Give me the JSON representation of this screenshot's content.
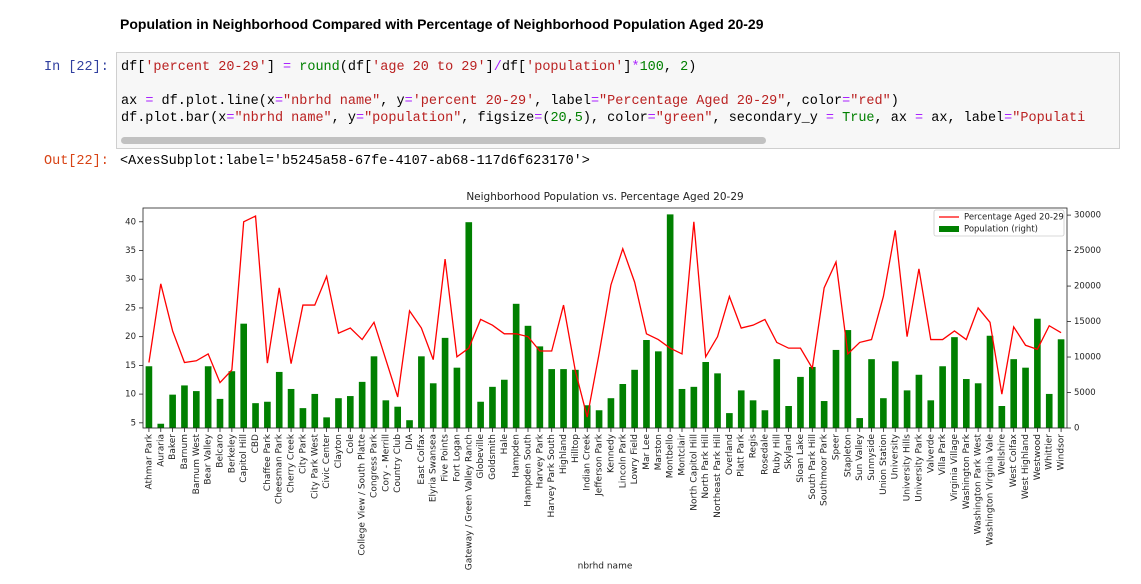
{
  "header": {
    "title": "Population in Neighborhood Compared with Percentage of Neighborhood Population Aged 20-29"
  },
  "input_prompt": "In [22]:",
  "output_prompt": "Out[22]:",
  "code": {
    "lines": [
      [
        {
          "text": "df[",
          "color": "#000"
        },
        {
          "text": "'percent 20-29'",
          "color": "#ba2121"
        },
        {
          "text": "] ",
          "color": "#000"
        },
        {
          "text": "= ",
          "color": "#aa22ff"
        },
        {
          "text": "round",
          "color": "#008000"
        },
        {
          "text": "(df[",
          "color": "#000"
        },
        {
          "text": "'age 20 to 29'",
          "color": "#ba2121"
        },
        {
          "text": "]",
          "color": "#000"
        },
        {
          "text": "/",
          "color": "#aa22ff"
        },
        {
          "text": "df[",
          "color": "#000"
        },
        {
          "text": "'population'",
          "color": "#ba2121"
        },
        {
          "text": "]",
          "color": "#000"
        },
        {
          "text": "*",
          "color": "#aa22ff"
        },
        {
          "text": "100",
          "color": "#008000"
        },
        {
          "text": ", ",
          "color": "#000"
        },
        {
          "text": "2",
          "color": "#008000"
        },
        {
          "text": ")",
          "color": "#000"
        }
      ],
      [],
      [
        {
          "text": "ax ",
          "color": "#000"
        },
        {
          "text": "= ",
          "color": "#aa22ff"
        },
        {
          "text": "df.plot.line(x",
          "color": "#000"
        },
        {
          "text": "=",
          "color": "#aa22ff"
        },
        {
          "text": "\"nbrhd name\"",
          "color": "#ba2121"
        },
        {
          "text": ", y",
          "color": "#000"
        },
        {
          "text": "=",
          "color": "#aa22ff"
        },
        {
          "text": "'percent 20-29'",
          "color": "#ba2121"
        },
        {
          "text": ", label",
          "color": "#000"
        },
        {
          "text": "=",
          "color": "#aa22ff"
        },
        {
          "text": "\"Percentage Aged 20-29\"",
          "color": "#ba2121"
        },
        {
          "text": ", color",
          "color": "#000"
        },
        {
          "text": "=",
          "color": "#aa22ff"
        },
        {
          "text": "\"red\"",
          "color": "#ba2121"
        },
        {
          "text": ")",
          "color": "#000"
        }
      ],
      [
        {
          "text": "df.plot.bar(x",
          "color": "#000"
        },
        {
          "text": "=",
          "color": "#aa22ff"
        },
        {
          "text": "\"nbrhd name\"",
          "color": "#ba2121"
        },
        {
          "text": ", y",
          "color": "#000"
        },
        {
          "text": "=",
          "color": "#aa22ff"
        },
        {
          "text": "\"population\"",
          "color": "#ba2121"
        },
        {
          "text": ", figsize",
          "color": "#000"
        },
        {
          "text": "=",
          "color": "#aa22ff"
        },
        {
          "text": "(",
          "color": "#000"
        },
        {
          "text": "20",
          "color": "#008000"
        },
        {
          "text": ",",
          "color": "#000"
        },
        {
          "text": "5",
          "color": "#008000"
        },
        {
          "text": "), color",
          "color": "#000"
        },
        {
          "text": "=",
          "color": "#aa22ff"
        },
        {
          "text": "\"green\"",
          "color": "#ba2121"
        },
        {
          "text": ", secondary_y ",
          "color": "#000"
        },
        {
          "text": "= ",
          "color": "#aa22ff"
        },
        {
          "text": "True",
          "color": "#008000"
        },
        {
          "text": ", ax ",
          "color": "#000"
        },
        {
          "text": "= ",
          "color": "#aa22ff"
        },
        {
          "text": "ax, label",
          "color": "#000"
        },
        {
          "text": "=",
          "color": "#aa22ff"
        },
        {
          "text": "\"Populati",
          "color": "#ba2121"
        }
      ]
    ]
  },
  "output": "<AxesSubplot:label='b5245a58-67fe-4107-ab68-117d6f623170'>",
  "chart_data": {
    "type": "combo",
    "title": "Neighborhood Population vs. Percentage Aged 20-29",
    "x_label": "nbrhd name",
    "legend": "upper right",
    "categories": [
      "Athmar Park",
      "Auraria",
      "Baker",
      "Barnum",
      "Barnum West",
      "Bear Valley",
      "Belcaro",
      "Berkeley",
      "Capitol Hill",
      "CBD",
      "Chaffee Park",
      "Cheesman Park",
      "Cherry Creek",
      "City Park",
      "City Park West",
      "Civic Center",
      "Clayton",
      "Cole",
      "College View / South Platte",
      "Congress Park",
      "Cory - Merrill",
      "Country Club",
      "DIA",
      "East Colfax",
      "Elyria Swansea",
      "Five Points",
      "Fort Logan",
      "Gateway / Green Valley Ranch",
      "Globeville",
      "Goldsmith",
      "Hale",
      "Hampden",
      "Hampden South",
      "Harvey Park",
      "Harvey Park South",
      "Highland",
      "Hilltop",
      "Indian Creek",
      "Jefferson Park",
      "Kennedy",
      "Lincoln Park",
      "Lowry Field",
      "Mar Lee",
      "Marston",
      "Montbello",
      "Montclair",
      "North Capitol Hill",
      "North Park Hill",
      "Northeast Park Hill",
      "Overland",
      "Platt Park",
      "Regis",
      "Rosedale",
      "Ruby Hill",
      "Skyland",
      "Sloan Lake",
      "South Park Hill",
      "Southmoor Park",
      "Speer",
      "Stapleton",
      "Sun Valley",
      "Sunnyside",
      "Union Station",
      "University",
      "University Hills",
      "University Park",
      "Valverde",
      "Villa Park",
      "Virginia Village",
      "Washington Park",
      "Washington Park West",
      "Washington Virginia Vale",
      "Wellshire",
      "West Colfax",
      "West Highland",
      "Westwood",
      "Whittier",
      "Windsor"
    ],
    "series": [
      {
        "name": "Percentage Aged 20-29",
        "type": "line",
        "color": "red",
        "values": [
          15.5,
          29.2,
          21,
          15.5,
          15.8,
          17,
          12,
          14.2,
          40,
          41,
          15.4,
          28.5,
          15.3,
          25.5,
          25.5,
          30.5,
          20.6,
          21.5,
          19.5,
          22.5,
          16,
          9.5,
          24.5,
          21.5,
          16,
          33.5,
          16.5,
          18,
          23,
          22,
          20.5,
          20.5,
          20,
          17.5,
          17.5,
          25.5,
          14,
          6,
          17,
          29,
          35.3,
          29.5,
          20.5,
          19.5,
          18,
          17,
          40,
          16.5,
          20,
          27,
          21.5,
          22,
          23,
          19,
          18,
          18,
          14.5,
          28.5,
          33,
          17,
          19,
          19.5,
          27,
          38.5,
          20,
          31.8,
          19.5,
          19.5,
          21,
          19.5,
          25,
          22.5,
          10,
          21.7,
          18.5,
          17.8,
          21.9,
          20.7
        ]
      },
      {
        "name": "Population (right)",
        "type": "bar",
        "color": "green",
        "axis": "y2",
        "values": [
          8700,
          600,
          4700,
          6000,
          5200,
          8700,
          4100,
          8000,
          14700,
          3500,
          3700,
          7900,
          5500,
          2800,
          4800,
          1500,
          4200,
          4500,
          6500,
          10100,
          3900,
          3000,
          1100,
          10100,
          6300,
          12700,
          8500,
          29000,
          3700,
          5800,
          6800,
          17500,
          14400,
          11500,
          8300,
          8300,
          8200,
          3200,
          2500,
          4200,
          6200,
          8200,
          12400,
          10800,
          30100,
          5500,
          5800,
          9300,
          7700,
          2100,
          5300,
          3900,
          2500,
          9700,
          3100,
          7200,
          8600,
          3800,
          11000,
          13800,
          1400,
          9700,
          4200,
          9400,
          5300,
          7500,
          3900,
          8700,
          12800,
          6900,
          6300,
          13000,
          3100,
          9700,
          8500,
          15400,
          4800,
          12500
        ]
      }
    ],
    "ylim": [
      4.1,
      42.4
    ],
    "yticks": [
      5,
      10,
      15,
      20,
      25,
      30,
      35,
      40
    ],
    "y2lim": [
      0,
      31000
    ],
    "y2ticks": [
      0,
      5000,
      10000,
      15000,
      20000,
      25000,
      30000
    ]
  }
}
